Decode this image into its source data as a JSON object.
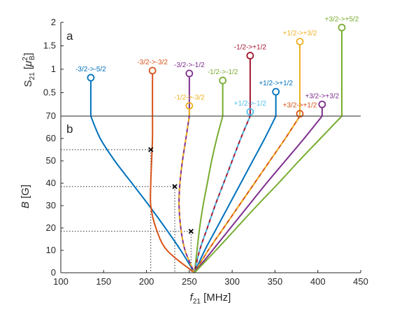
{
  "colors": {
    "blue": "#0072bd",
    "orange": "#d95319",
    "yellow": "#edb120",
    "purple": "#7e2f8e",
    "green": "#77ac30",
    "cyan": "#4dbeee",
    "darkred": "#a2142f",
    "axis": "#262626",
    "marker": "#000000"
  },
  "chart_data": [
    {
      "panel": "a",
      "type": "stem",
      "ylabel_main": "S",
      "ylabel_sub": "21",
      "ylabel_unit_open": " [",
      "ylabel_unit_mu": "μ",
      "ylabel_unit_sup": "2",
      "ylabel_unit_sub": "B",
      "ylabel_unit_close": "]",
      "ylim": [
        0,
        2
      ],
      "yticks": [
        "0.5",
        "1",
        "1.5",
        "2"
      ],
      "ytick_values": [
        0.5,
        1,
        1.5,
        2
      ],
      "points": [
        {
          "label": "-3/2->-5/2",
          "f": 135,
          "S": 0.82,
          "color": "blue"
        },
        {
          "label": "-3/2->-3/2",
          "f": 207,
          "S": 0.97,
          "color": "orange"
        },
        {
          "label": "-3/2->-1/2",
          "f": 250,
          "S": 0.91,
          "color": "purple"
        },
        {
          "label": "-1/2->-3/2",
          "f": 250,
          "S": 0.22,
          "color": "yellow"
        },
        {
          "label": "-1/2->-1/2",
          "f": 289,
          "S": 0.76,
          "color": "green"
        },
        {
          "label": "-1/2->+1/2",
          "f": 321,
          "S": 1.29,
          "color": "darkred"
        },
        {
          "label": "+1/2->-1/2",
          "f": 321,
          "S": 0.09,
          "color": "cyan"
        },
        {
          "label": "+1/2->+1/2",
          "f": 351,
          "S": 0.52,
          "color": "blue"
        },
        {
          "label": "+1/2->+3/2",
          "f": 379,
          "S": 1.59,
          "color": "yellow"
        },
        {
          "label": "+3/2->+1/2",
          "f": 379,
          "S": 0.05,
          "color": "orange"
        },
        {
          "label": "+3/2->+3/2",
          "f": 405,
          "S": 0.25,
          "color": "purple"
        },
        {
          "label": "+3/2->+5/2",
          "f": 428,
          "S": 1.89,
          "color": "green"
        }
      ]
    },
    {
      "panel": "b",
      "type": "line",
      "xlabel_main": "f",
      "xlabel_sub": "21",
      "xlabel_unit": " [MHz]",
      "ylabel_main": "B",
      "ylabel_unit": " [G]",
      "xlim": [
        100,
        450
      ],
      "ylim": [
        0,
        70
      ],
      "xticks": [
        "100",
        "150",
        "200",
        "250",
        "300",
        "350",
        "400",
        "450"
      ],
      "xtick_values": [
        100,
        150,
        200,
        250,
        300,
        350,
        400,
        450
      ],
      "yticks": [
        "0",
        "10",
        "20",
        "30",
        "40",
        "50",
        "60",
        "70"
      ],
      "ytick_values": [
        0,
        10,
        20,
        30,
        40,
        50,
        60,
        70
      ],
      "series": [
        {
          "color": "blue",
          "x": [
            256,
            240,
            222,
            203,
            183,
            163,
            146,
            135
          ],
          "y": [
            0,
            10,
            20,
            30,
            40,
            50,
            60,
            70
          ]
        },
        {
          "color": "orange",
          "x": [
            256,
            224,
            211,
            205,
            205,
            206,
            207,
            207
          ],
          "y": [
            0,
            10,
            20,
            30,
            40,
            50,
            60,
            70
          ]
        },
        {
          "color": "purple",
          "x": [
            256,
            245,
            240,
            238,
            239,
            242,
            246,
            250
          ],
          "y": [
            0,
            10,
            20,
            30,
            40,
            50,
            60,
            70
          ],
          "dashed_overlay": "yellow"
        },
        {
          "color": "green",
          "x": [
            256,
            259,
            262,
            266,
            271,
            276,
            282,
            289
          ],
          "y": [
            0,
            10,
            20,
            30,
            40,
            50,
            60,
            70
          ]
        },
        {
          "color": "darkred",
          "x": [
            256,
            262,
            271,
            280,
            290,
            300,
            310,
            321
          ],
          "y": [
            0,
            10,
            20,
            30,
            40,
            50,
            60,
            70
          ],
          "dashed_overlay": "cyan"
        },
        {
          "color": "blue",
          "x": [
            256,
            268,
            282,
            296,
            310,
            324,
            338,
            351
          ],
          "y": [
            0,
            10,
            20,
            30,
            40,
            50,
            60,
            70
          ]
        },
        {
          "color": "orange",
          "x": [
            256,
            272,
            290,
            308,
            326,
            344,
            362,
            379
          ],
          "y": [
            0,
            10,
            20,
            30,
            40,
            50,
            60,
            70
          ],
          "dashed_overlay": "yellow"
        },
        {
          "color": "purple",
          "x": [
            256,
            277,
            298,
            319,
            340,
            362,
            384,
            405
          ],
          "y": [
            0,
            10,
            20,
            30,
            40,
            50,
            60,
            70
          ]
        },
        {
          "color": "green",
          "x": [
            256,
            281,
            305,
            329,
            354,
            378,
            403,
            428
          ],
          "y": [
            0,
            10,
            20,
            30,
            40,
            50,
            60,
            70
          ]
        }
      ],
      "markers": [
        {
          "f": 205,
          "B": 55
        },
        {
          "f": 233,
          "B": 38.5
        },
        {
          "f": 252,
          "B": 18.5
        }
      ],
      "guides": [
        {
          "f": 205,
          "B": 55
        },
        {
          "f": 233,
          "B": 38.5
        },
        {
          "f": 252,
          "B": 18.5
        }
      ]
    }
  ]
}
